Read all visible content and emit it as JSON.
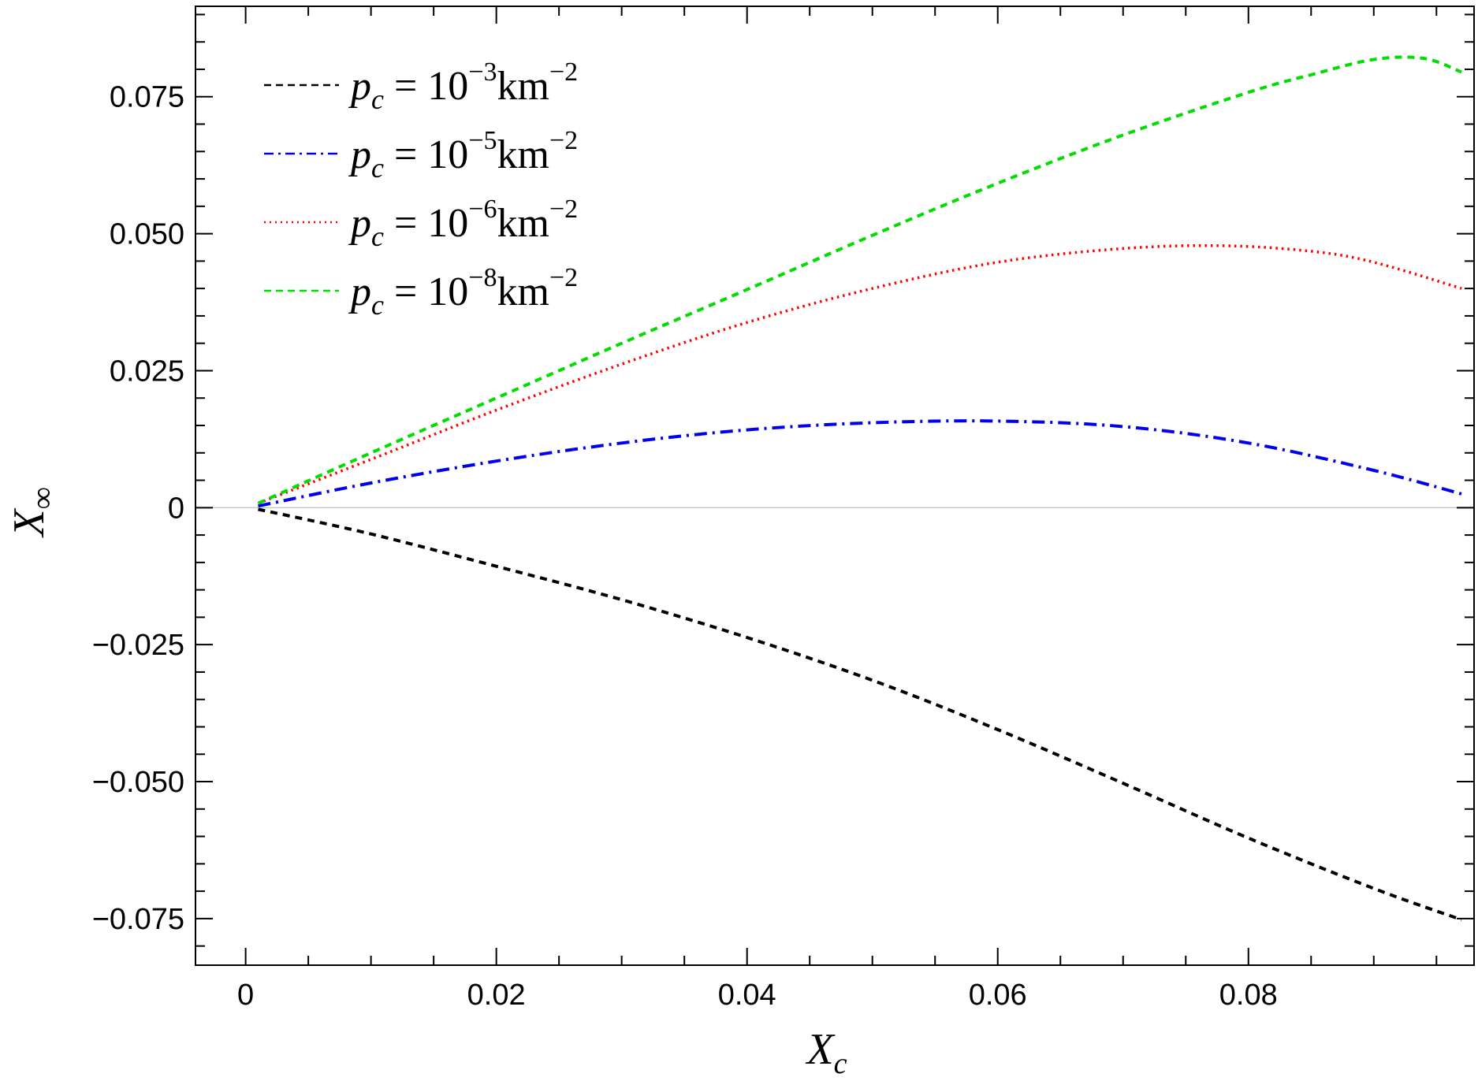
{
  "chart_data": {
    "type": "line",
    "xlabel": {
      "main": "X",
      "sub": "c"
    },
    "ylabel": {
      "main": "X",
      "sub": "∞"
    },
    "xlim": [
      -0.004,
      0.098
    ],
    "ylim": [
      -0.0835,
      0.0915
    ],
    "xticks": [
      0,
      0.02,
      0.04,
      0.06,
      0.08
    ],
    "xtick_labels": [
      "0",
      "0.02",
      "0.04",
      "0.06",
      "0.08"
    ],
    "yticks": [
      -0.075,
      -0.05,
      -0.025,
      0,
      0.025,
      0.05,
      0.075
    ],
    "ytick_labels": [
      "−0.075",
      "−0.050",
      "−0.025",
      "0",
      "0.025",
      "0.050",
      "0.075"
    ],
    "grid": false,
    "legend_position": "top-left",
    "series": [
      {
        "name": "p_c = 10^-3 km^-2",
        "legend": {
          "lhs": "p",
          "lhs_sub": "c",
          "eq": " = 10",
          "exp": "−3",
          "unit": "km",
          "unit_exp": "−2"
        },
        "color": "#000000",
        "style": "dashed",
        "x": [
          0.001,
          0.01,
          0.02,
          0.03,
          0.04,
          0.05,
          0.06,
          0.07,
          0.08,
          0.09,
          0.097
        ],
        "y": [
          -0.0003,
          -0.0048,
          -0.0107,
          -0.0168,
          -0.0237,
          -0.0315,
          -0.0405,
          -0.0503,
          -0.0603,
          -0.0695,
          -0.0752
        ]
      },
      {
        "name": "p_c = 10^-5 km^-2",
        "legend": {
          "lhs": "p",
          "lhs_sub": "c",
          "eq": " = 10",
          "exp": "−5",
          "unit": "km",
          "unit_exp": "−2"
        },
        "color": "#0000ee",
        "style": "dashdot",
        "x": [
          0.001,
          0.01,
          0.02,
          0.03,
          0.04,
          0.05,
          0.06,
          0.07,
          0.08,
          0.09,
          0.097
        ],
        "y": [
          0.0003,
          0.0045,
          0.0085,
          0.0118,
          0.0142,
          0.0155,
          0.0158,
          0.0148,
          0.0118,
          0.0068,
          0.0025
        ]
      },
      {
        "name": "p_c = 10^-6 km^-2",
        "legend": {
          "lhs": "p",
          "lhs_sub": "c",
          "eq": " = 10",
          "exp": "−6",
          "unit": "km",
          "unit_exp": "−2"
        },
        "color": "#ff0000",
        "style": "dotted",
        "x": [
          0.001,
          0.01,
          0.02,
          0.03,
          0.04,
          0.05,
          0.06,
          0.07,
          0.078,
          0.085,
          0.09,
          0.097
        ],
        "y": [
          0.0008,
          0.0088,
          0.0178,
          0.0262,
          0.0338,
          0.04,
          0.0448,
          0.0473,
          0.0478,
          0.0468,
          0.0448,
          0.04
        ]
      },
      {
        "name": "p_c = 10^-8 km^-2",
        "legend": {
          "lhs": "p",
          "lhs_sub": "c",
          "eq": " = 10",
          "exp": "−8",
          "unit": "km",
          "unit_exp": "−2"
        },
        "color": "#00dd00",
        "style": "dashed",
        "x": [
          0.001,
          0.01,
          0.02,
          0.03,
          0.04,
          0.05,
          0.06,
          0.07,
          0.08,
          0.085,
          0.09,
          0.094,
          0.097
        ],
        "y": [
          0.0008,
          0.01,
          0.02,
          0.03,
          0.0398,
          0.0497,
          0.0592,
          0.068,
          0.0758,
          0.079,
          0.0818,
          0.082,
          0.0795
        ]
      }
    ]
  }
}
